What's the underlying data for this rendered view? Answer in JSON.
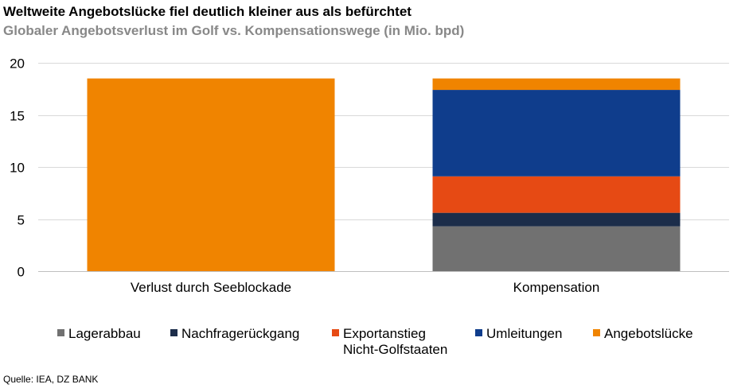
{
  "title": "Weltweite Angebotslücke fiel deutlich kleiner aus als befürchtet",
  "subtitle": "Globaler Angebotsverlust im Golf vs. Kompensationswege (in Mio. bpd)",
  "source": "Quelle: IEA, DZ BANK",
  "chart_data": {
    "type": "bar",
    "stacked": true,
    "categories": [
      "Verlust durch Seeblockade",
      "Kompensation"
    ],
    "ylim": [
      0,
      20
    ],
    "yticks": [
      0,
      5,
      10,
      15,
      20
    ],
    "grid": true,
    "legend_position": "bottom",
    "series": [
      {
        "name": "Lagerabbau",
        "label_lines": [
          "Lagerabbau"
        ],
        "color": "#717171",
        "values": [
          0,
          4.3
        ]
      },
      {
        "name": "Nachfragerückgang",
        "label_lines": [
          "Nachfragerückgang"
        ],
        "color": "#1c2d4a",
        "values": [
          0,
          1.3
        ]
      },
      {
        "name": "Exportanstieg Nicht-Golfstaaten",
        "label_lines": [
          "Exportanstieg",
          "Nicht-Golfstaaten"
        ],
        "color": "#e64a14",
        "values": [
          0,
          3.5
        ]
      },
      {
        "name": "Umleitungen",
        "label_lines": [
          "Umleitungen"
        ],
        "color": "#0f3d8c",
        "values": [
          0,
          8.3
        ]
      },
      {
        "name": "Angebotslücke",
        "label_lines": [
          "Angebotslücke"
        ],
        "color": "#f08400",
        "values": [
          18.5,
          1.1
        ]
      }
    ]
  }
}
